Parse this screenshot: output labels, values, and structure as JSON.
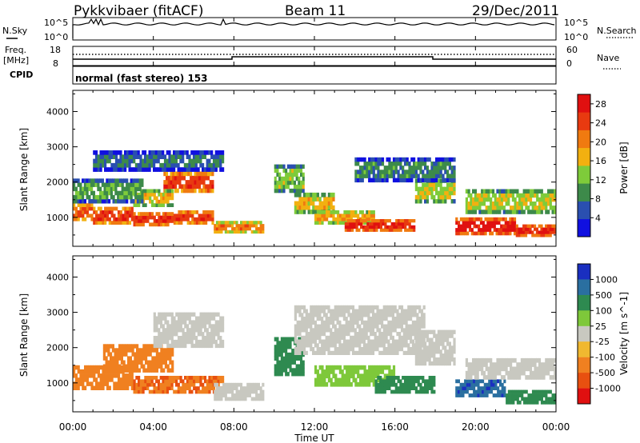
{
  "header": {
    "station": "Pykkvibaer (fitACF)",
    "beam": "Beam 11",
    "date": "29/Dec/2011"
  },
  "strip": {
    "nsky_label": "N.Sky",
    "nsky_ticks": [
      "10^5",
      "10^0"
    ],
    "nsearch_label": "N.Search",
    "nsearch_ticks": [
      "10^5",
      "10^0"
    ],
    "freq_label": "Freq.",
    "freq_unit": "[MHz]",
    "freq_ticks": [
      "18",
      "8"
    ],
    "nave_label": "Nave",
    "nave_ticks": [
      "60",
      "0"
    ],
    "cpid_label": "CPID",
    "cpid_text": "normal (fast stereo) 153"
  },
  "colors": {
    "power": [
      "#1010e0",
      "#2a4fb0",
      "#3d8a4a",
      "#7ecb3a",
      "#f2b010",
      "#f07a10",
      "#e83a10",
      "#e01010"
    ],
    "velocity": [
      "#1a2fc0",
      "#2a6fa0",
      "#2e8a50",
      "#7ec83a",
      "#c8c8c0",
      "#f0b830",
      "#f08020",
      "#e85010",
      "#e01010"
    ]
  },
  "chart_data": [
    {
      "type": "heatmap",
      "title": "",
      "xlabel": "Time UT",
      "ylabel": "Slant Range [km]",
      "x_ticks": [
        "00:00",
        "04:00",
        "08:00",
        "12:00",
        "16:00",
        "20:00",
        "00:00"
      ],
      "x_range_hours": [
        0,
        24
      ],
      "y_ticks": [
        "1000",
        "2000",
        "3000",
        "4000"
      ],
      "y_tick_values": [
        1000,
        2000,
        3000,
        4000
      ],
      "ylim": [
        180,
        4600
      ],
      "colorbar_label": "Power [dB]",
      "colorbar_ticks": [
        "4",
        "8",
        "12",
        "16",
        "20",
        "24",
        "28"
      ],
      "colorbar_values": [
        4,
        8,
        12,
        16,
        20,
        24,
        28
      ],
      "colorbar_range": [
        0,
        30
      ],
      "bands": [
        {
          "t": [
            0.0,
            1.0
          ],
          "r": [
            900,
            1400
          ],
          "v": 22
        },
        {
          "t": [
            1.0,
            3.0
          ],
          "r": [
            800,
            1300
          ],
          "v": 24
        },
        {
          "t": [
            3.0,
            5.0
          ],
          "r": [
            750,
            1150
          ],
          "v": 25
        },
        {
          "t": [
            5.0,
            7.0
          ],
          "r": [
            800,
            1200
          ],
          "v": 24
        },
        {
          "t": [
            7.0,
            9.5
          ],
          "r": [
            550,
            900
          ],
          "v": 20
        },
        {
          "t": [
            4.5,
            7.0
          ],
          "r": [
            1700,
            2300
          ],
          "v": 24
        },
        {
          "t": [
            3.0,
            5.0
          ],
          "r": [
            1300,
            1800
          ],
          "v": 16
        },
        {
          "t": [
            0.0,
            3.5
          ],
          "r": [
            1400,
            2100
          ],
          "v": 10
        },
        {
          "t": [
            10.0,
            11.5
          ],
          "r": [
            1700,
            2500
          ],
          "v": 12
        },
        {
          "t": [
            11.0,
            13.0
          ],
          "r": [
            1100,
            1700
          ],
          "v": 16
        },
        {
          "t": [
            12.0,
            15.0
          ],
          "r": [
            800,
            1200
          ],
          "v": 18
        },
        {
          "t": [
            13.5,
            17.0
          ],
          "r": [
            600,
            950
          ],
          "v": 26
        },
        {
          "t": [
            17.0,
            19.0
          ],
          "r": [
            1400,
            2100
          ],
          "v": 14
        },
        {
          "t": [
            19.0,
            22.0
          ],
          "r": [
            500,
            1000
          ],
          "v": 27
        },
        {
          "t": [
            22.0,
            24.0
          ],
          "r": [
            450,
            800
          ],
          "v": 26
        },
        {
          "t": [
            19.5,
            24.0
          ],
          "r": [
            1100,
            1800
          ],
          "v": 14
        },
        {
          "t": [
            14.0,
            19.0
          ],
          "r": [
            2000,
            2700
          ],
          "v": 8
        },
        {
          "t": [
            1.0,
            7.5
          ],
          "r": [
            2300,
            2900
          ],
          "v": 7
        }
      ]
    },
    {
      "type": "heatmap",
      "title": "",
      "xlabel": "Time UT",
      "ylabel": "Slant Range [km]",
      "x_ticks": [
        "00:00",
        "04:00",
        "08:00",
        "12:00",
        "16:00",
        "20:00",
        "00:00"
      ],
      "x_range_hours": [
        0,
        24
      ],
      "y_ticks": [
        "1000",
        "2000",
        "3000",
        "4000"
      ],
      "y_tick_values": [
        1000,
        2000,
        3000,
        4000
      ],
      "ylim": [
        180,
        4600
      ],
      "colorbar_label": "Velocity [m s^-1]",
      "colorbar_ticks": [
        "1000",
        "500",
        "100",
        "25",
        "-25",
        "-100",
        "-500",
        "-1000"
      ],
      "bands": [
        {
          "t": [
            0.0,
            3.0
          ],
          "r": [
            800,
            1500
          ],
          "v": -300
        },
        {
          "t": [
            1.5,
            5.0
          ],
          "r": [
            1300,
            2100
          ],
          "v": -400
        },
        {
          "t": [
            3.0,
            7.5
          ],
          "r": [
            700,
            1200
          ],
          "v": -500
        },
        {
          "t": [
            4.0,
            7.5
          ],
          "r": [
            2000,
            3000
          ],
          "v": 0
        },
        {
          "t": [
            7.0,
            9.5
          ],
          "r": [
            500,
            1000
          ],
          "v": 0
        },
        {
          "t": [
            10.0,
            11.5
          ],
          "r": [
            1200,
            2300
          ],
          "v": 150
        },
        {
          "t": [
            11.0,
            17.5
          ],
          "r": [
            1800,
            3200
          ],
          "v": 0
        },
        {
          "t": [
            12.0,
            16.0
          ],
          "r": [
            900,
            1500
          ],
          "v": 60
        },
        {
          "t": [
            15.0,
            18.0
          ],
          "r": [
            700,
            1200
          ],
          "v": 200
        },
        {
          "t": [
            17.0,
            19.0
          ],
          "r": [
            1500,
            2500
          ],
          "v": 0
        },
        {
          "t": [
            19.0,
            21.5
          ],
          "r": [
            600,
            1100
          ],
          "v": 900
        },
        {
          "t": [
            21.5,
            24.0
          ],
          "r": [
            400,
            800
          ],
          "v": 300
        },
        {
          "t": [
            19.5,
            24.0
          ],
          "r": [
            1100,
            1700
          ],
          "v": 0
        }
      ]
    }
  ]
}
